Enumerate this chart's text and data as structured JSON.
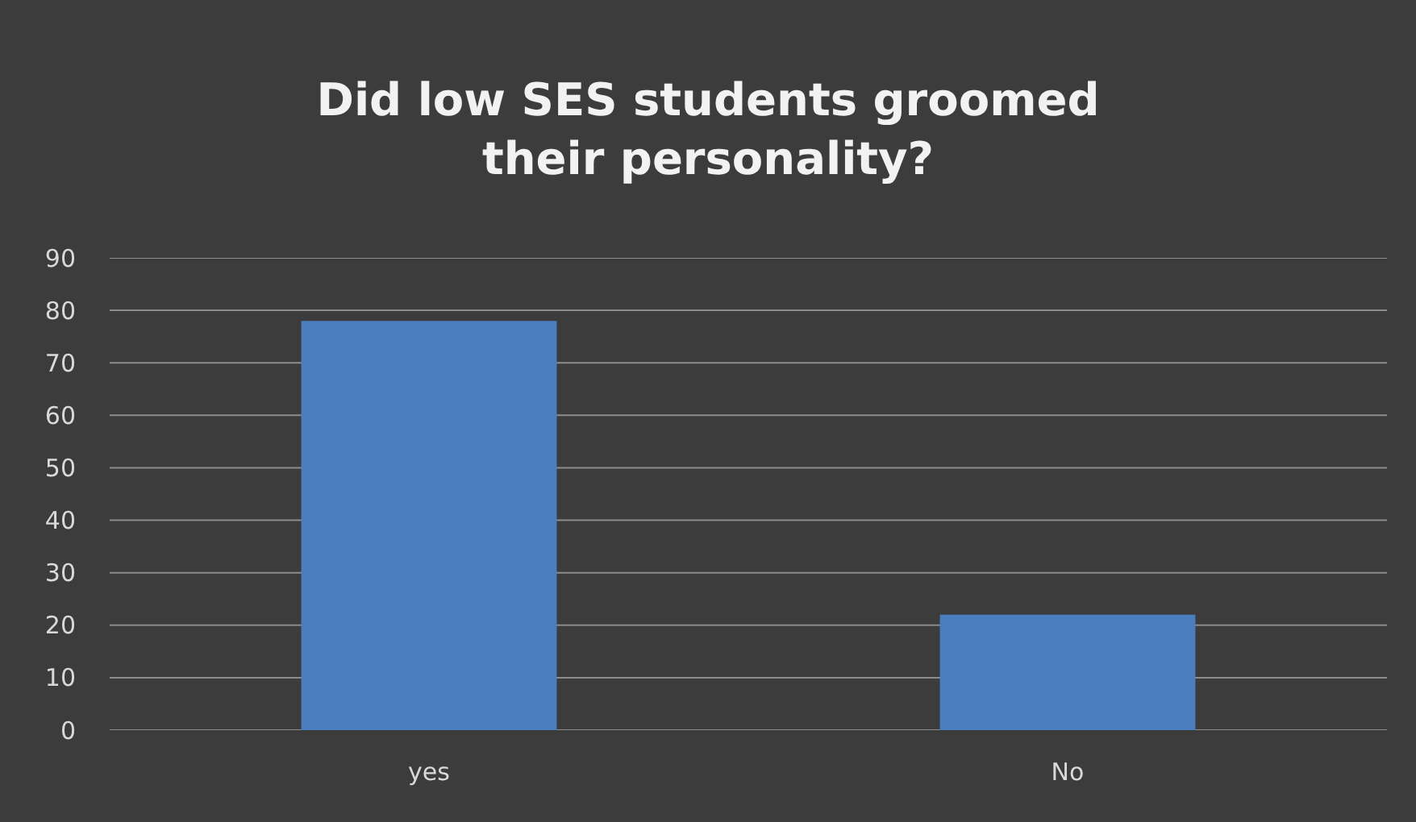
{
  "chart_data": {
    "type": "bar",
    "title": "Did low SES students groomed their personality?",
    "categories": [
      "yes",
      "No"
    ],
    "values": [
      78,
      22
    ],
    "color": "#4a7ebf",
    "ylim": [
      0,
      90
    ],
    "yticks": [
      0,
      10,
      20,
      30,
      40,
      50,
      60,
      70,
      80,
      90
    ],
    "grid": "y"
  }
}
